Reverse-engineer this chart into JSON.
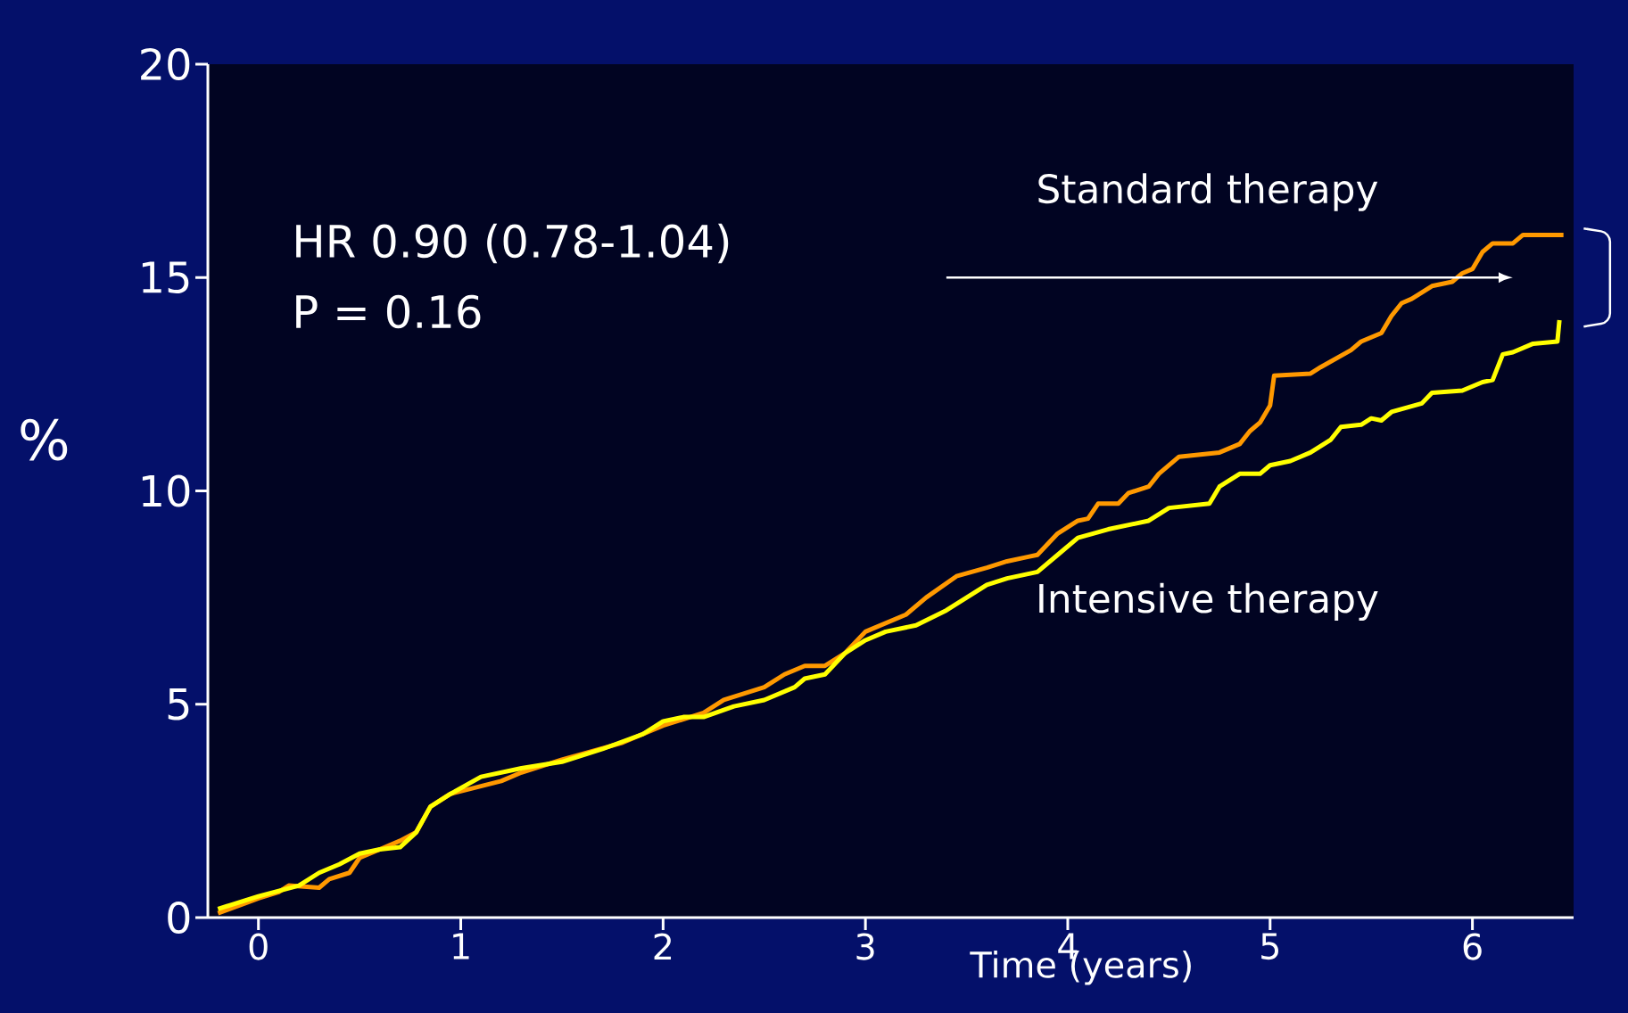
{
  "chart_data": {
    "type": "line",
    "xlabel": "Time (years)",
    "ylabel": "%",
    "annotations": [
      "HR 0.90 (0.78-1.04)",
      "P = 0.16"
    ],
    "xlim": [
      -0.25,
      6.5
    ],
    "ylim": [
      0,
      20
    ],
    "xticks": [
      0,
      1,
      2,
      3,
      4,
      5,
      6
    ],
    "yticks": [
      0,
      5,
      10,
      15,
      20
    ],
    "grid": false,
    "series": [
      {
        "name": "Standard therapy",
        "color": "#ff9900",
        "x": [
          -0.2,
          0,
          0.1,
          0.15,
          0.3,
          0.35,
          0.45,
          0.5,
          0.6,
          0.7,
          0.78,
          0.85,
          0.95,
          1.2,
          1.3,
          1.5,
          1.8,
          2.0,
          2.2,
          2.3,
          2.5,
          2.6,
          2.7,
          2.8,
          2.9,
          3.0,
          3.2,
          3.3,
          3.45,
          3.6,
          3.7,
          3.8,
          3.85,
          3.95,
          4.05,
          4.1,
          4.15,
          4.25,
          4.3,
          4.4,
          4.45,
          4.55,
          4.75,
          4.85,
          4.9,
          4.95,
          5.0,
          5.02,
          5.2,
          5.25,
          5.4,
          5.45,
          5.55,
          5.6,
          5.65,
          5.7,
          5.8,
          5.9,
          5.95,
          6.0,
          6.05,
          6.1,
          6.2,
          6.25,
          6.45
        ],
        "values": [
          0.1,
          0.45,
          0.6,
          0.75,
          0.7,
          0.9,
          1.05,
          1.4,
          1.6,
          1.8,
          2.0,
          2.6,
          2.9,
          3.2,
          3.4,
          3.7,
          4.1,
          4.5,
          4.8,
          5.1,
          5.4,
          5.7,
          5.9,
          5.9,
          6.2,
          6.7,
          7.1,
          7.5,
          8.0,
          8.2,
          8.35,
          8.45,
          8.5,
          9.0,
          9.3,
          9.35,
          9.7,
          9.7,
          9.95,
          10.1,
          10.4,
          10.8,
          10.9,
          11.1,
          11.4,
          11.6,
          12.0,
          12.7,
          12.75,
          12.9,
          13.3,
          13.5,
          13.7,
          14.1,
          14.4,
          14.5,
          14.8,
          14.9,
          15.1,
          15.2,
          15.6,
          15.8,
          15.8,
          16.0,
          16.0
        ]
      },
      {
        "name": "Intensive therapy",
        "color": "#ffff00",
        "x": [
          -0.2,
          0,
          0.2,
          0.3,
          0.4,
          0.5,
          0.6,
          0.7,
          0.78,
          0.85,
          0.95,
          1.1,
          1.3,
          1.5,
          1.7,
          1.9,
          2.0,
          2.1,
          2.2,
          2.35,
          2.5,
          2.65,
          2.7,
          2.8,
          2.9,
          3.0,
          3.1,
          3.25,
          3.4,
          3.5,
          3.6,
          3.7,
          3.85,
          3.95,
          4.05,
          4.2,
          4.4,
          4.5,
          4.7,
          4.75,
          4.85,
          4.95,
          5.0,
          5.1,
          5.2,
          5.3,
          5.35,
          5.45,
          5.5,
          5.55,
          5.6,
          5.75,
          5.8,
          5.95,
          6.0,
          6.05,
          6.1,
          6.15,
          6.2,
          6.3,
          6.42,
          6.43
        ],
        "values": [
          0.2,
          0.5,
          0.75,
          1.05,
          1.25,
          1.5,
          1.6,
          1.65,
          2.0,
          2.6,
          2.9,
          3.3,
          3.5,
          3.65,
          3.95,
          4.3,
          4.6,
          4.7,
          4.7,
          4.95,
          5.1,
          5.4,
          5.6,
          5.7,
          6.2,
          6.5,
          6.7,
          6.85,
          7.2,
          7.5,
          7.8,
          7.95,
          8.1,
          8.5,
          8.9,
          9.1,
          9.3,
          9.6,
          9.7,
          10.1,
          10.4,
          10.4,
          10.6,
          10.7,
          10.9,
          11.2,
          11.5,
          11.55,
          11.7,
          11.65,
          11.85,
          12.05,
          12.3,
          12.35,
          12.45,
          12.55,
          12.6,
          13.2,
          13.25,
          13.45,
          13.5,
          14.0
        ]
      }
    ]
  }
}
